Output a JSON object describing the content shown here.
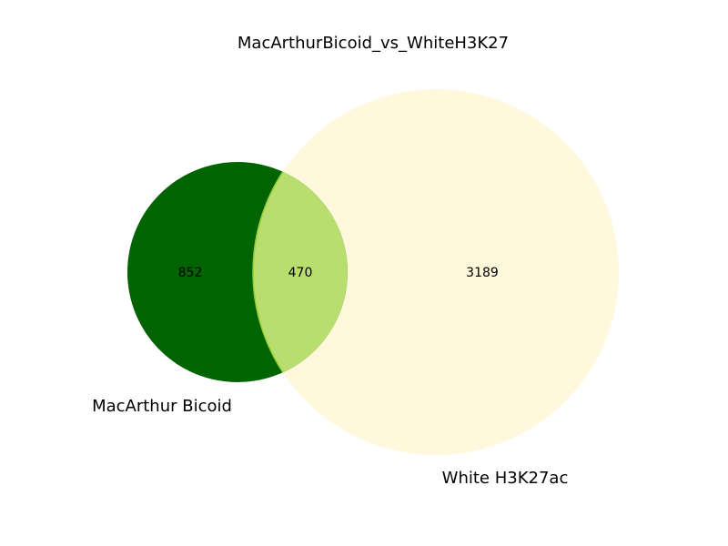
{
  "title": "MacArthurBicoid_vs_WhiteH3K27",
  "sets": [
    {
      "name": "MacArthur Bicoid",
      "size": 1322,
      "color": "#006400"
    },
    {
      "name": "White H3K27ac",
      "size": 3659,
      "color": "#fff8dc"
    }
  ],
  "regions": {
    "only_a": "852",
    "intersection": "470",
    "only_b": "3189"
  },
  "intersection_color": "#b8de6f",
  "intersection_edge_color": "#9acd32"
}
